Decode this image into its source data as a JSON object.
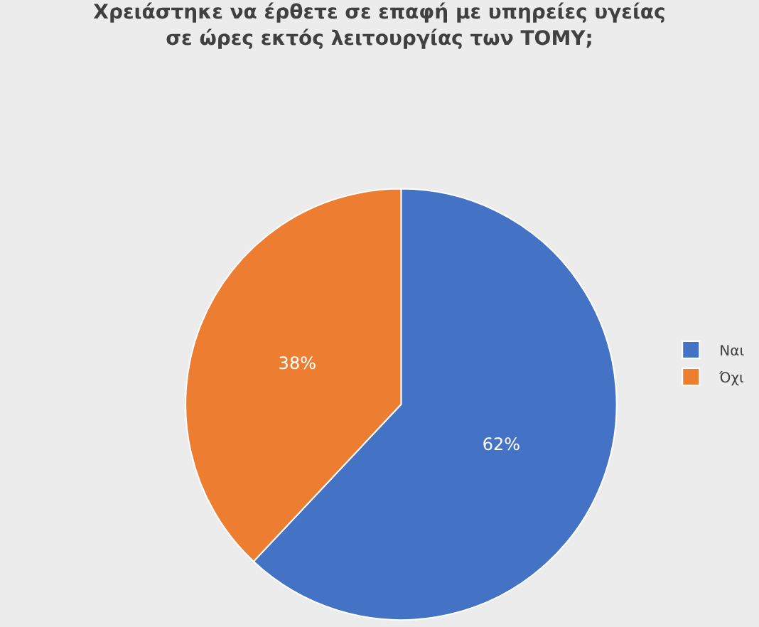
{
  "chart_data": {
    "type": "pie",
    "title": "Χρειάστηκε να έρθετε σε επαφή με υπηρείες υγείας\nσε ώρες εκτός λειτουργίας των ΤΟΜΥ;",
    "categories": [
      "Ναι",
      "Όχι"
    ],
    "values": [
      62,
      38
    ],
    "colors": [
      "#4472c4",
      "#ed7d31"
    ],
    "value_labels": [
      "62%",
      "38%"
    ],
    "legend": "right"
  }
}
